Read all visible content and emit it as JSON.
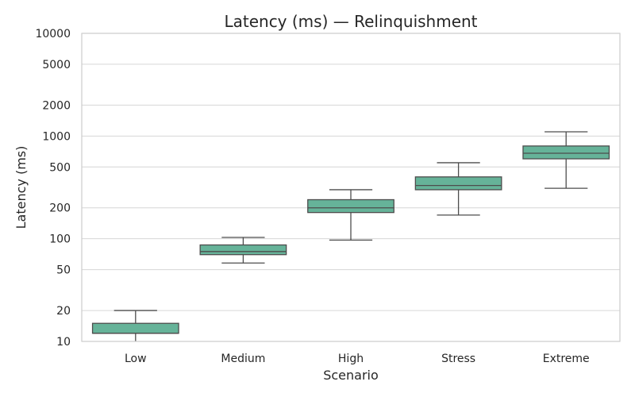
{
  "chart_data": {
    "type": "box",
    "title": "Latency (ms) — Relinquishment",
    "xlabel": "Scenario",
    "ylabel": "Latency (ms)",
    "yscale": "log",
    "ylim": [
      10,
      10000
    ],
    "yticks": [
      10,
      20,
      50,
      100,
      200,
      500,
      1000,
      2000,
      5000,
      10000
    ],
    "ytick_labels": [
      "10",
      "20",
      "50",
      "100",
      "200",
      "500",
      "1000",
      "2000",
      "5000",
      "10000"
    ],
    "grid": "horizontal",
    "categories": [
      "Low",
      "Medium",
      "High",
      "Stress",
      "Extreme"
    ],
    "boxes": [
      {
        "whisker_low": 10,
        "q1": 12,
        "median": 12,
        "q3": 15,
        "whisker_high": 20
      },
      {
        "whisker_low": 58,
        "q1": 70,
        "median": 75,
        "q3": 87,
        "whisker_high": 103
      },
      {
        "whisker_low": 97,
        "q1": 180,
        "median": 200,
        "q3": 240,
        "whisker_high": 300
      },
      {
        "whisker_low": 170,
        "q1": 300,
        "median": 330,
        "q3": 400,
        "whisker_high": 550
      },
      {
        "whisker_low": 310,
        "q1": 600,
        "median": 680,
        "q3": 800,
        "whisker_high": 1100
      }
    ],
    "colors": {
      "box_fill": "#66b399",
      "box_edge": "#4d4d4d",
      "grid": "#d6d6d6",
      "frame": "#cccccc"
    }
  }
}
